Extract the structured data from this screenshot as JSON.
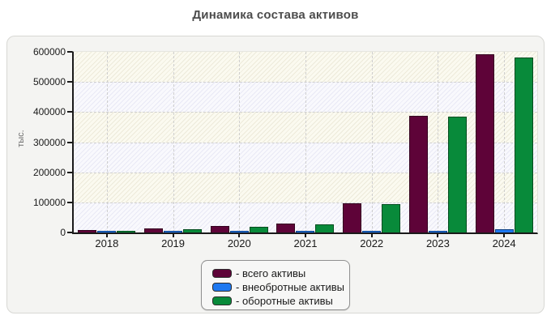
{
  "title": "Динамика состава активов",
  "chart_data": {
    "type": "bar",
    "title": "Динамика состава активов",
    "y_axis_title": "тыс.",
    "categories": [
      "2018",
      "2019",
      "2020",
      "2021",
      "2022",
      "2023",
      "2024"
    ],
    "series": [
      {
        "key": "total",
        "label": "- всего активы",
        "color": "#5e0338",
        "values": [
          8000,
          14000,
          22000,
          30000,
          97000,
          388500,
          592000
        ]
      },
      {
        "key": "noncurrent",
        "label": "- внеобротные активы",
        "color": "#1e78f0",
        "values": [
          2000,
          2000,
          2500,
          3000,
          4000,
          4500,
          10000
        ]
      },
      {
        "key": "current",
        "label": "- оборотные активы",
        "color": "#088a3a",
        "values": [
          6000,
          12000,
          19500,
          27000,
          93000,
          384000,
          582000
        ]
      }
    ],
    "ylim": [
      0,
      600000
    ],
    "y_ticks": [
      "0",
      "100000",
      "200000",
      "300000",
      "400000",
      "500000",
      "600000"
    ],
    "grid": "dashed horizontal and vertical",
    "legend_position": "bottom-center",
    "plot_band_colors": [
      "#fbfaf0",
      "#f9f9fd"
    ],
    "axis_color": "#1a1a1a"
  }
}
